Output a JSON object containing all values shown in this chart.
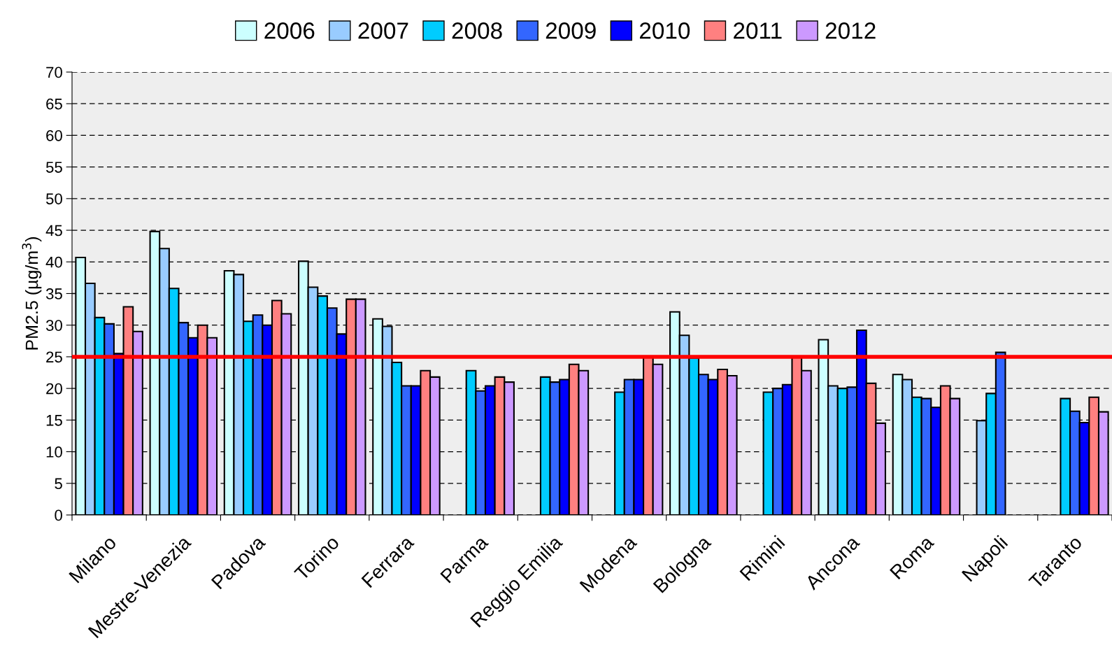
{
  "chart_data": {
    "type": "bar",
    "ylabel": "PM2.5 (µg/m$^{3}$)",
    "categories": [
      "Milano",
      "Mestre-Venezia",
      "Padova",
      "Torino",
      "Ferrara",
      "Parma",
      "Reggio Emilia",
      "Modena",
      "Bologna",
      "Rimini",
      "Ancona",
      "Roma",
      "Napoli",
      "Taranto"
    ],
    "series": [
      {
        "name": "2006",
        "color": "#ccffff",
        "values": [
          40.7,
          44.8,
          38.6,
          40.1,
          31.0,
          null,
          null,
          null,
          32.1,
          null,
          27.7,
          22.2,
          null,
          null
        ]
      },
      {
        "name": "2007",
        "color": "#99ccff",
        "values": [
          36.6,
          42.1,
          38.0,
          36.0,
          29.8,
          null,
          null,
          null,
          28.4,
          null,
          20.4,
          21.4,
          14.9,
          null
        ]
      },
      {
        "name": "2008",
        "color": "#00ccff",
        "values": [
          31.2,
          35.8,
          30.6,
          34.6,
          24.1,
          22.8,
          21.8,
          19.4,
          24.8,
          19.4,
          20.0,
          18.6,
          19.2,
          18.4
        ]
      },
      {
        "name": "2009",
        "color": "#3366ff",
        "values": [
          30.2,
          30.4,
          31.6,
          32.7,
          20.4,
          19.6,
          21.0,
          21.4,
          22.2,
          20.0,
          20.2,
          18.4,
          25.7,
          16.4
        ]
      },
      {
        "name": "2010",
        "color": "#0000ff",
        "values": [
          25.5,
          28.0,
          30.0,
          28.6,
          20.4,
          20.4,
          21.4,
          21.4,
          21.4,
          20.6,
          29.2,
          17.0,
          null,
          14.6
        ]
      },
      {
        "name": "2011",
        "color": "#ff8080",
        "values": [
          32.9,
          30.0,
          33.9,
          34.1,
          22.8,
          21.8,
          23.8,
          25.0,
          23.0,
          25.0,
          20.8,
          20.4,
          null,
          18.6
        ]
      },
      {
        "name": "2012",
        "color": "#cc99ff",
        "values": [
          29.0,
          28.0,
          31.8,
          34.1,
          21.8,
          21.0,
          22.8,
          23.8,
          22.0,
          22.8,
          14.5,
          18.4,
          null,
          16.3
        ]
      }
    ],
    "ylim": [
      0,
      70
    ],
    "yticks": [
      0,
      5,
      10,
      15,
      20,
      25,
      30,
      35,
      40,
      45,
      50,
      55,
      60,
      65,
      70
    ],
    "grid": "y",
    "legend": "top",
    "ref_lines": [
      {
        "axis": "y",
        "value": 25,
        "color": "#ff0000",
        "line_style": "solid"
      }
    ]
  }
}
